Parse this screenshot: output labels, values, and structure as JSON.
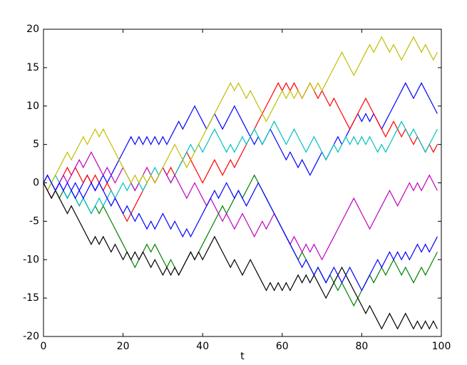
{
  "chart_data": {
    "type": "line",
    "xlabel": "t",
    "x": [
      0,
      1,
      2,
      3,
      4,
      5,
      6,
      7,
      8,
      9,
      10,
      11,
      12,
      13,
      14,
      15,
      16,
      17,
      18,
      19,
      20,
      21,
      22,
      23,
      24,
      25,
      26,
      27,
      28,
      29,
      30,
      31,
      32,
      33,
      34,
      35,
      36,
      37,
      38,
      39,
      40,
      41,
      42,
      43,
      44,
      45,
      46,
      47,
      48,
      49,
      50,
      51,
      52,
      53,
      54,
      55,
      56,
      57,
      58,
      59,
      60,
      61,
      62,
      63,
      64,
      65,
      66,
      67,
      68,
      69,
      70,
      71,
      72,
      73,
      74,
      75,
      76,
      77,
      78,
      79,
      80,
      81,
      82,
      83,
      84,
      85,
      86,
      87,
      88,
      89,
      90,
      91,
      92,
      93,
      94,
      95,
      96,
      97,
      98,
      99
    ],
    "series": [
      {
        "color": "#0000ff",
        "values": [
          0,
          1,
          0,
          -1,
          0,
          -1,
          -2,
          -1,
          0,
          -1,
          0,
          1,
          0,
          -1,
          0,
          1,
          0,
          1,
          2,
          3,
          4,
          5,
          6,
          5,
          6,
          5,
          6,
          5,
          6,
          5,
          6,
          5,
          6,
          7,
          8,
          7,
          8,
          9,
          10,
          9,
          8,
          7,
          8,
          9,
          8,
          7,
          8,
          9,
          10,
          9,
          8,
          7,
          6,
          5,
          6,
          5,
          6,
          7,
          6,
          5,
          4,
          3,
          4,
          3,
          2,
          3,
          2,
          1,
          2,
          3,
          4,
          3,
          4,
          5,
          6,
          5,
          6,
          7,
          8,
          9,
          8,
          9,
          8,
          9,
          8,
          7,
          8,
          9,
          10,
          11,
          12,
          13,
          12,
          11,
          12,
          13,
          12,
          11,
          10,
          9
        ]
      },
      {
        "color": "#008000",
        "values": [
          0,
          -1,
          0,
          -1,
          -2,
          -1,
          -2,
          -1,
          -2,
          -3,
          -2,
          -3,
          -4,
          -3,
          -4,
          -3,
          -4,
          -5,
          -6,
          -7,
          -8,
          -9,
          -10,
          -11,
          -10,
          -9,
          -8,
          -9,
          -8,
          -9,
          -10,
          -11,
          -10,
          -11,
          -12,
          -11,
          -10,
          -9,
          -10,
          -9,
          -8,
          -7,
          -6,
          -5,
          -4,
          -3,
          -4,
          -3,
          -2,
          -1,
          -2,
          -1,
          0,
          1,
          0,
          -1,
          -2,
          -3,
          -4,
          -5,
          -6,
          -7,
          -8,
          -9,
          -10,
          -9,
          -10,
          -11,
          -12,
          -11,
          -12,
          -13,
          -12,
          -13,
          -14,
          -13,
          -14,
          -15,
          -16,
          -15,
          -14,
          -13,
          -12,
          -13,
          -12,
          -11,
          -12,
          -11,
          -10,
          -11,
          -12,
          -11,
          -12,
          -13,
          -12,
          -11,
          -12,
          -11,
          -10,
          -9
        ]
      },
      {
        "color": "#ff0000",
        "values": [
          0,
          -1,
          -2,
          -1,
          0,
          1,
          2,
          1,
          2,
          1,
          0,
          1,
          0,
          1,
          0,
          -1,
          0,
          -1,
          -2,
          -3,
          -4,
          -5,
          -4,
          -3,
          -2,
          -1,
          0,
          1,
          0,
          1,
          2,
          1,
          2,
          1,
          2,
          3,
          4,
          3,
          2,
          1,
          0,
          1,
          2,
          3,
          2,
          1,
          2,
          3,
          2,
          3,
          4,
          5,
          6,
          7,
          8,
          9,
          10,
          11,
          12,
          13,
          12,
          13,
          12,
          13,
          12,
          11,
          12,
          13,
          12,
          11,
          12,
          11,
          10,
          11,
          10,
          9,
          8,
          7,
          8,
          9,
          10,
          11,
          10,
          9,
          8,
          7,
          6,
          7,
          8,
          7,
          6,
          7,
          6,
          5,
          6,
          5,
          4,
          5,
          4,
          5
        ]
      },
      {
        "color": "#00bfbf",
        "values": [
          0,
          -1,
          0,
          1,
          0,
          -1,
          -2,
          -1,
          -2,
          -3,
          -2,
          -3,
          -4,
          -3,
          -2,
          -3,
          -2,
          -1,
          -2,
          -1,
          0,
          -1,
          0,
          -1,
          0,
          -1,
          0,
          1,
          2,
          1,
          2,
          1,
          0,
          1,
          2,
          3,
          4,
          5,
          4,
          5,
          4,
          5,
          6,
          7,
          6,
          5,
          4,
          5,
          4,
          5,
          6,
          5,
          6,
          7,
          6,
          5,
          6,
          7,
          8,
          7,
          6,
          5,
          6,
          7,
          6,
          5,
          4,
          5,
          6,
          5,
          4,
          3,
          4,
          5,
          4,
          5,
          6,
          5,
          6,
          5,
          6,
          5,
          6,
          5,
          4,
          5,
          4,
          5,
          6,
          7,
          8,
          7,
          6,
          7,
          6,
          5,
          4,
          5,
          6,
          7
        ]
      },
      {
        "color": "#bf00bf",
        "values": [
          0,
          -1,
          -2,
          -1,
          0,
          1,
          0,
          1,
          2,
          3,
          2,
          3,
          4,
          3,
          2,
          1,
          2,
          1,
          0,
          1,
          2,
          1,
          0,
          -1,
          0,
          1,
          2,
          1,
          0,
          1,
          2,
          1,
          0,
          1,
          0,
          -1,
          -2,
          -1,
          0,
          -1,
          -2,
          -3,
          -2,
          -3,
          -4,
          -5,
          -4,
          -5,
          -6,
          -5,
          -4,
          -5,
          -6,
          -7,
          -6,
          -5,
          -6,
          -5,
          -4,
          -5,
          -6,
          -7,
          -8,
          -7,
          -8,
          -9,
          -8,
          -9,
          -8,
          -9,
          -10,
          -9,
          -8,
          -7,
          -6,
          -5,
          -4,
          -3,
          -2,
          -3,
          -4,
          -5,
          -6,
          -5,
          -4,
          -3,
          -2,
          -1,
          -2,
          -3,
          -2,
          -1,
          0,
          -1,
          0,
          -1,
          0,
          1,
          0,
          -1
        ]
      },
      {
        "color": "#bfbf00",
        "values": [
          0,
          -1,
          0,
          1,
          2,
          3,
          4,
          3,
          4,
          5,
          6,
          5,
          6,
          7,
          6,
          7,
          6,
          5,
          4,
          3,
          2,
          1,
          0,
          1,
          0,
          1,
          0,
          1,
          0,
          1,
          2,
          3,
          4,
          5,
          4,
          3,
          2,
          3,
          4,
          5,
          6,
          7,
          8,
          9,
          10,
          11,
          12,
          13,
          12,
          13,
          12,
          11,
          12,
          11,
          10,
          9,
          8,
          9,
          10,
          11,
          12,
          11,
          12,
          11,
          12,
          11,
          12,
          13,
          12,
          13,
          12,
          13,
          14,
          15,
          16,
          17,
          16,
          15,
          14,
          15,
          16,
          17,
          18,
          17,
          18,
          19,
          18,
          17,
          18,
          17,
          16,
          17,
          18,
          19,
          18,
          17,
          18,
          17,
          16,
          17
        ]
      },
      {
        "color": "#000000",
        "values": [
          0,
          -1,
          -2,
          -1,
          -2,
          -3,
          -4,
          -3,
          -4,
          -5,
          -6,
          -7,
          -8,
          -7,
          -8,
          -7,
          -8,
          -9,
          -8,
          -9,
          -10,
          -9,
          -10,
          -9,
          -10,
          -9,
          -10,
          -11,
          -10,
          -11,
          -12,
          -11,
          -12,
          -11,
          -12,
          -11,
          -10,
          -9,
          -10,
          -9,
          -10,
          -9,
          -8,
          -7,
          -8,
          -9,
          -10,
          -11,
          -10,
          -11,
          -12,
          -11,
          -10,
          -11,
          -12,
          -13,
          -14,
          -13,
          -14,
          -13,
          -14,
          -13,
          -14,
          -13,
          -12,
          -13,
          -12,
          -13,
          -12,
          -13,
          -14,
          -15,
          -14,
          -13,
          -12,
          -11,
          -12,
          -13,
          -14,
          -15,
          -16,
          -17,
          -16,
          -17,
          -18,
          -19,
          -18,
          -17,
          -18,
          -19,
          -18,
          -17,
          -18,
          -19,
          -18,
          -19,
          -18,
          -19,
          -18,
          -19
        ]
      },
      {
        "color": "#0000ff",
        "values": [
          0,
          1,
          0,
          -1,
          0,
          -1,
          0,
          -1,
          -2,
          -1,
          -2,
          -1,
          0,
          -1,
          0,
          -1,
          -2,
          -3,
          -2,
          -3,
          -4,
          -3,
          -4,
          -5,
          -4,
          -5,
          -6,
          -5,
          -6,
          -5,
          -4,
          -5,
          -6,
          -5,
          -6,
          -7,
          -6,
          -7,
          -6,
          -5,
          -4,
          -3,
          -2,
          -1,
          -2,
          -1,
          0,
          -1,
          -2,
          -1,
          -2,
          -3,
          -2,
          -1,
          0,
          -1,
          -2,
          -3,
          -4,
          -5,
          -6,
          -7,
          -8,
          -9,
          -10,
          -11,
          -10,
          -11,
          -12,
          -11,
          -12,
          -13,
          -12,
          -11,
          -12,
          -13,
          -12,
          -11,
          -12,
          -13,
          -14,
          -13,
          -12,
          -11,
          -10,
          -11,
          -10,
          -9,
          -10,
          -9,
          -10,
          -9,
          -10,
          -9,
          -8,
          -9,
          -8,
          -9,
          -8,
          -7
        ]
      }
    ],
    "xlim": [
      0,
      100
    ],
    "xticks": [
      0,
      20,
      40,
      60,
      80,
      100
    ],
    "ylim": [
      -20,
      20
    ],
    "yticks": [
      -20,
      -15,
      -10,
      -5,
      0,
      5,
      10,
      15,
      20
    ]
  }
}
